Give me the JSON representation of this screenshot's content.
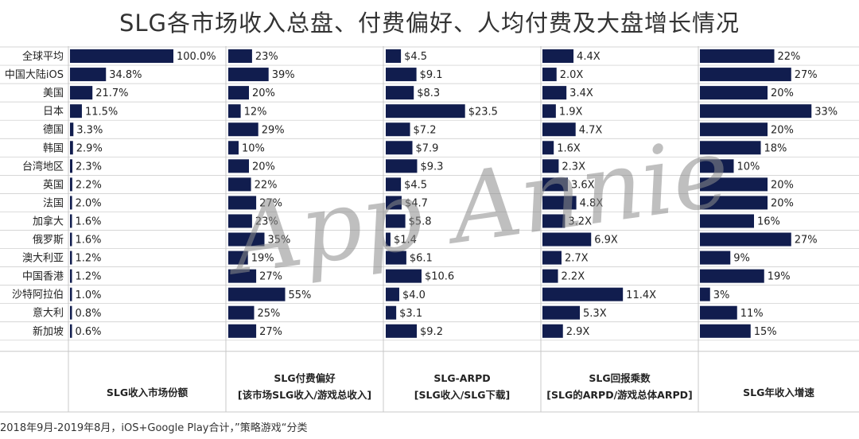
{
  "title": "SLG各市场收入总盘、付费偏好、人均付费及大盘增长情况",
  "footnote": "2018年9月-2019年8月，iOS+Google Play合计，”策略游戏“分类",
  "watermark": "App Annie",
  "colors": {
    "bar": "#111d4e",
    "grid": "#c8c8c8",
    "text": "#222222"
  },
  "chart_data": {
    "type": "bar",
    "orientation": "horizontal",
    "categories": [
      "全球平均",
      "中国大陆iOS",
      "美国",
      "日本",
      "德国",
      "韩国",
      "台湾地区",
      "英国",
      "法国",
      "加拿大",
      "俄罗斯",
      "澳大利亚",
      "中国香港",
      "沙特阿拉伯",
      "意大利",
      "新加坡"
    ],
    "panels": [
      {
        "header": [
          "SLG收入市场份额"
        ],
        "values": [
          100.0,
          34.8,
          21.7,
          11.5,
          3.3,
          2.9,
          2.3,
          2.2,
          2.0,
          1.6,
          1.6,
          1.2,
          1.2,
          1.0,
          0.8,
          0.6
        ],
        "labels": [
          "100.0%",
          "34.8%",
          "21.7%",
          "11.5%",
          "3.3%",
          "2.9%",
          "2.3%",
          "2.2%",
          "2.0%",
          "1.6%",
          "1.6%",
          "1.2%",
          "1.2%",
          "1.0%",
          "0.8%",
          "0.6%"
        ],
        "xlim": [
          0,
          100
        ]
      },
      {
        "header": [
          "SLG付费偏好",
          "[该市场SLG收入/游戏总收入]"
        ],
        "values": [
          23,
          39,
          20,
          12,
          29,
          10,
          20,
          22,
          27,
          23,
          35,
          19,
          27,
          55,
          25,
          27
        ],
        "labels": [
          "23%",
          "39%",
          "20%",
          "12%",
          "29%",
          "10%",
          "20%",
          "22%",
          "27%",
          "23%",
          "35%",
          "19%",
          "27%",
          "55%",
          "25%",
          "27%"
        ],
        "xlim": [
          0,
          100
        ]
      },
      {
        "header": [
          "SLG-ARPD",
          "[SLG收入/SLG下载]"
        ],
        "values": [
          4.5,
          9.1,
          8.3,
          23.5,
          7.2,
          7.9,
          9.3,
          4.5,
          4.7,
          5.8,
          1.4,
          6.1,
          10.6,
          4.0,
          3.1,
          9.2
        ],
        "labels": [
          "$4.5",
          "$9.1",
          "$8.3",
          "$23.5",
          "$7.2",
          "$7.9",
          "$9.3",
          "$4.5",
          "$4.7",
          "$5.8",
          "$1.4",
          "$6.1",
          "$10.6",
          "$4.0",
          "$3.1",
          "$9.2"
        ],
        "xlim": [
          0,
          33
        ]
      },
      {
        "header": [
          "SLG回报乘数",
          "[SLG的ARPD/游戏总体ARPD]"
        ],
        "values": [
          4.4,
          2.0,
          3.4,
          1.9,
          4.7,
          1.6,
          2.3,
          3.6,
          4.8,
          3.2,
          6.9,
          2.7,
          2.2,
          11.4,
          5.3,
          2.9
        ],
        "labels": [
          "4.4X",
          "2.0X",
          "3.4X",
          "1.9X",
          "4.7X",
          "1.6X",
          "2.3X",
          "3.6X",
          "4.8X",
          "3.2X",
          "6.9X",
          "2.7X",
          "2.2X",
          "11.4X",
          "5.3X",
          "2.9X"
        ],
        "xlim": [
          0,
          16
        ]
      },
      {
        "header": [
          "SLG年收入增速"
        ],
        "values": [
          22,
          27,
          20,
          33,
          20,
          18,
          10,
          20,
          20,
          16,
          27,
          9,
          19,
          3,
          11,
          15
        ],
        "labels": [
          "22%",
          "27%",
          "20%",
          "33%",
          "20%",
          "18%",
          "10%",
          "20%",
          "20%",
          "16%",
          "27%",
          "9%",
          "19%",
          "3%",
          "11%",
          "15%"
        ],
        "xlim": [
          0,
          36
        ]
      }
    ],
    "grid": true
  }
}
